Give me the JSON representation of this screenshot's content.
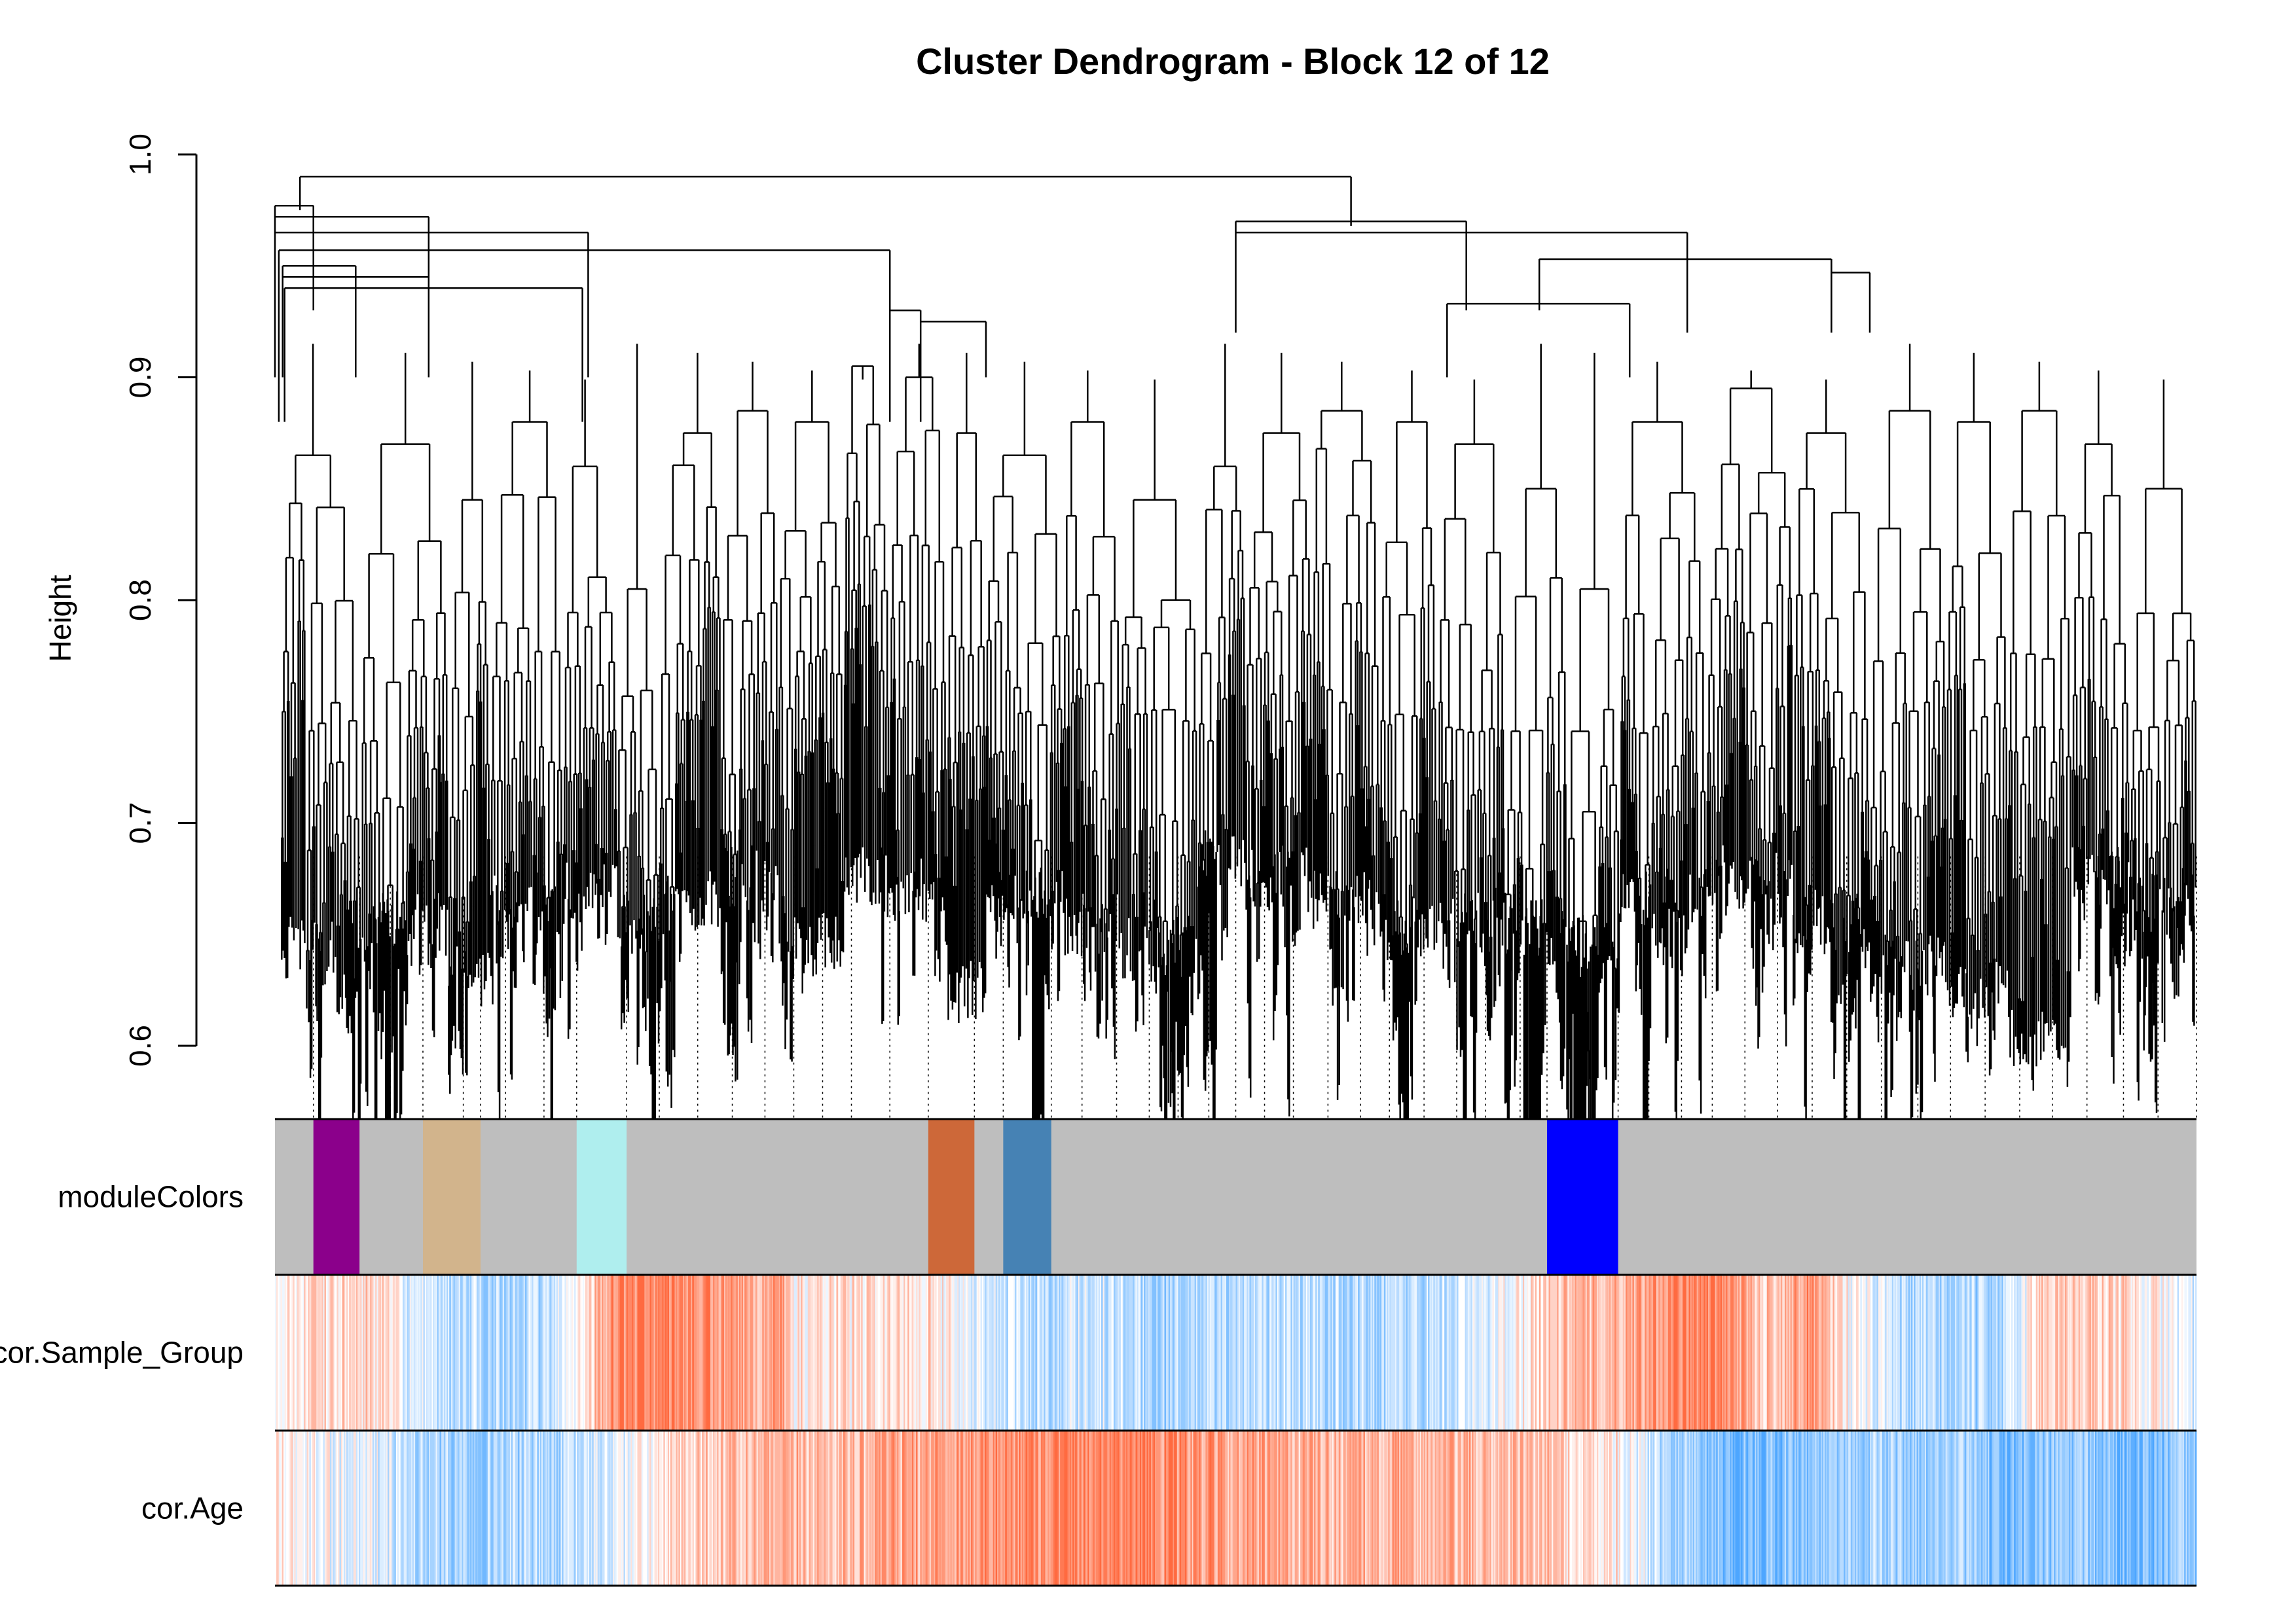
{
  "chart_data": {
    "type": "dendrogram",
    "title": "Cluster Dendrogram - Block 12 of 12",
    "ylabel": "Height",
    "ylim": [
      0.6,
      1.0
    ],
    "yticks": [
      "0.6",
      "0.7",
      "0.8",
      "0.9",
      "1.0"
    ],
    "color_rows": [
      {
        "name": "moduleColors",
        "label": "moduleColors",
        "base_color": "#bebebe",
        "segments": [
          {
            "start": 0.02,
            "end": 0.044,
            "color": "#8b008b"
          },
          {
            "start": 0.077,
            "end": 0.107,
            "color": "#d2b48c"
          },
          {
            "start": 0.157,
            "end": 0.183,
            "color": "#afeeee"
          },
          {
            "start": 0.34,
            "end": 0.364,
            "color": "#cd6839"
          },
          {
            "start": 0.379,
            "end": 0.404,
            "color": "#4682b4"
          },
          {
            "start": 0.662,
            "end": 0.699,
            "color": "#0000ff"
          }
        ]
      },
      {
        "name": "cor.Sample_Group",
        "label": "cor.Sample_Group",
        "colors": {
          "negative": "#4da6ff",
          "positive": "#ff6a40",
          "neutral": "#ffffff"
        },
        "profile": [
          [
            0.0,
            0.15
          ],
          [
            0.05,
            0.25
          ],
          [
            0.08,
            -0.35
          ],
          [
            0.14,
            -0.4
          ],
          [
            0.16,
            0.2
          ],
          [
            0.18,
            0.85
          ],
          [
            0.21,
            0.8
          ],
          [
            0.25,
            0.45
          ],
          [
            0.26,
            0.9
          ],
          [
            0.27,
            0.1
          ],
          [
            0.34,
            0.25
          ],
          [
            0.37,
            -0.2
          ],
          [
            0.4,
            -0.35
          ],
          [
            0.42,
            -0.2
          ],
          [
            0.46,
            -0.45
          ],
          [
            0.52,
            -0.3
          ],
          [
            0.56,
            -0.4
          ],
          [
            0.6,
            -0.35
          ],
          [
            0.63,
            -0.2
          ],
          [
            0.66,
            0.35
          ],
          [
            0.7,
            0.5
          ],
          [
            0.73,
            0.85
          ],
          [
            0.76,
            0.7
          ],
          [
            0.77,
            0.3
          ],
          [
            0.8,
            0.7
          ],
          [
            0.82,
            0.0
          ],
          [
            0.85,
            -0.45
          ],
          [
            0.9,
            -0.4
          ],
          [
            0.92,
            0.35
          ],
          [
            0.96,
            0.25
          ],
          [
            1.0,
            -0.2
          ]
        ]
      },
      {
        "name": "cor.Age",
        "label": "cor.Age",
        "colors": {
          "negative": "#4da6ff",
          "positive": "#ff6a40",
          "neutral": "#ffffff"
        },
        "profile": [
          [
            0.0,
            0.05
          ],
          [
            0.05,
            -0.1
          ],
          [
            0.08,
            -0.45
          ],
          [
            0.15,
            -0.4
          ],
          [
            0.18,
            -0.1
          ],
          [
            0.22,
            0.35
          ],
          [
            0.3,
            0.45
          ],
          [
            0.34,
            0.6
          ],
          [
            0.4,
            0.75
          ],
          [
            0.45,
            0.9
          ],
          [
            0.47,
            0.65
          ],
          [
            0.52,
            0.5
          ],
          [
            0.6,
            0.45
          ],
          [
            0.65,
            0.4
          ],
          [
            0.7,
            0.1
          ],
          [
            0.72,
            -0.3
          ],
          [
            0.76,
            -0.75
          ],
          [
            0.82,
            -0.45
          ],
          [
            0.88,
            -0.5
          ],
          [
            0.9,
            -0.8
          ],
          [
            0.93,
            -0.55
          ],
          [
            0.96,
            -0.7
          ],
          [
            1.0,
            -0.6
          ]
        ]
      }
    ],
    "dendrogram": {
      "root_height": 0.99,
      "clusters": [
        {
          "h": 0.977,
          "x0": 0.0,
          "x1": 0.02,
          "min": 0.93
        },
        {
          "h": 0.972,
          "x0": 0.0,
          "x1": 0.08,
          "min": 0.9
        },
        {
          "h": 0.965,
          "x0": 0.0,
          "x1": 0.163,
          "min": 0.9
        },
        {
          "h": 0.957,
          "x0": 0.002,
          "x1": 0.32,
          "min": 0.88
        },
        {
          "h": 0.95,
          "x0": 0.004,
          "x1": 0.042,
          "min": 0.9
        },
        {
          "h": 0.945,
          "x0": 0.004,
          "x1": 0.08,
          "min": 0.9
        },
        {
          "h": 0.94,
          "x0": 0.005,
          "x1": 0.16,
          "min": 0.88
        },
        {
          "h": 0.93,
          "x0": 0.32,
          "x1": 0.336,
          "min": 0.88
        },
        {
          "h": 0.925,
          "x0": 0.336,
          "x1": 0.37,
          "min": 0.9
        },
        {
          "h": 0.97,
          "x0": 0.5,
          "x1": 0.62,
          "min": 0.93
        },
        {
          "h": 0.965,
          "x0": 0.5,
          "x1": 0.735,
          "min": 0.92
        },
        {
          "h": 0.953,
          "x0": 0.658,
          "x1": 0.81,
          "min": 0.93
        },
        {
          "h": 0.947,
          "x0": 0.81,
          "x1": 0.83,
          "min": 0.92
        },
        {
          "h": 0.933,
          "x0": 0.61,
          "x1": 0.705,
          "min": 0.9
        }
      ],
      "leaves": [
        {
          "x0": 0.003,
          "x1": 0.045,
          "top": 0.865,
          "bottom": 0.63
        },
        {
          "x0": 0.045,
          "x1": 0.09,
          "top": 0.87,
          "bottom": 0.64
        },
        {
          "x0": 0.09,
          "x1": 0.112,
          "top": 0.845,
          "bottom": 0.615
        },
        {
          "x0": 0.112,
          "x1": 0.15,
          "top": 0.88,
          "bottom": 0.65
        },
        {
          "x0": 0.15,
          "x1": 0.178,
          "top": 0.86,
          "bottom": 0.66
        },
        {
          "x0": 0.178,
          "x1": 0.2,
          "top": 0.805,
          "bottom": 0.64
        },
        {
          "x0": 0.2,
          "x1": 0.232,
          "top": 0.875,
          "bottom": 0.65
        },
        {
          "x0": 0.232,
          "x1": 0.262,
          "top": 0.885,
          "bottom": 0.66
        },
        {
          "x0": 0.262,
          "x1": 0.296,
          "top": 0.88,
          "bottom": 0.63
        },
        {
          "x0": 0.296,
          "x1": 0.32,
          "top": 0.905,
          "bottom": 0.66
        },
        {
          "x0": 0.32,
          "x1": 0.35,
          "top": 0.9,
          "bottom": 0.655
        },
        {
          "x0": 0.35,
          "x1": 0.37,
          "top": 0.875,
          "bottom": 0.61
        },
        {
          "x0": 0.37,
          "x1": 0.41,
          "top": 0.865,
          "bottom": 0.65
        },
        {
          "x0": 0.41,
          "x1": 0.44,
          "top": 0.88,
          "bottom": 0.64
        },
        {
          "x0": 0.44,
          "x1": 0.48,
          "top": 0.845,
          "bottom": 0.63
        },
        {
          "x0": 0.48,
          "x1": 0.505,
          "top": 0.86,
          "bottom": 0.67
        },
        {
          "x0": 0.505,
          "x1": 0.54,
          "top": 0.875,
          "bottom": 0.66
        },
        {
          "x0": 0.54,
          "x1": 0.575,
          "top": 0.885,
          "bottom": 0.65
        },
        {
          "x0": 0.575,
          "x1": 0.605,
          "top": 0.88,
          "bottom": 0.64
        },
        {
          "x0": 0.605,
          "x1": 0.64,
          "top": 0.87,
          "bottom": 0.64
        },
        {
          "x0": 0.64,
          "x1": 0.672,
          "top": 0.85,
          "bottom": 0.64
        },
        {
          "x0": 0.672,
          "x1": 0.7,
          "top": 0.805,
          "bottom": 0.63
        },
        {
          "x0": 0.7,
          "x1": 0.745,
          "top": 0.88,
          "bottom": 0.65
        },
        {
          "x0": 0.745,
          "x1": 0.79,
          "top": 0.895,
          "bottom": 0.66
        },
        {
          "x0": 0.79,
          "x1": 0.83,
          "top": 0.875,
          "bottom": 0.64
        },
        {
          "x0": 0.83,
          "x1": 0.87,
          "top": 0.885,
          "bottom": 0.62
        },
        {
          "x0": 0.87,
          "x1": 0.902,
          "top": 0.88,
          "bottom": 0.61
        },
        {
          "x0": 0.902,
          "x1": 0.935,
          "top": 0.885,
          "bottom": 0.59
        },
        {
          "x0": 0.935,
          "x1": 0.965,
          "top": 0.87,
          "bottom": 0.66
        },
        {
          "x0": 0.965,
          "x1": 1.0,
          "top": 0.85,
          "bottom": 0.65
        }
      ],
      "cut_lines": [
        0.02,
        0.044,
        0.06,
        0.077,
        0.098,
        0.107,
        0.12,
        0.14,
        0.157,
        0.183,
        0.2,
        0.22,
        0.238,
        0.255,
        0.27,
        0.285,
        0.3,
        0.32,
        0.34,
        0.364,
        0.379,
        0.404,
        0.42,
        0.438,
        0.455,
        0.47,
        0.486,
        0.5,
        0.515,
        0.53,
        0.548,
        0.565,
        0.58,
        0.598,
        0.615,
        0.63,
        0.648,
        0.662,
        0.699,
        0.715,
        0.732,
        0.748,
        0.765,
        0.782,
        0.8,
        0.818,
        0.836,
        0.855,
        0.872,
        0.89,
        0.908,
        0.925,
        0.943,
        0.962,
        0.98,
        1.0
      ]
    }
  }
}
